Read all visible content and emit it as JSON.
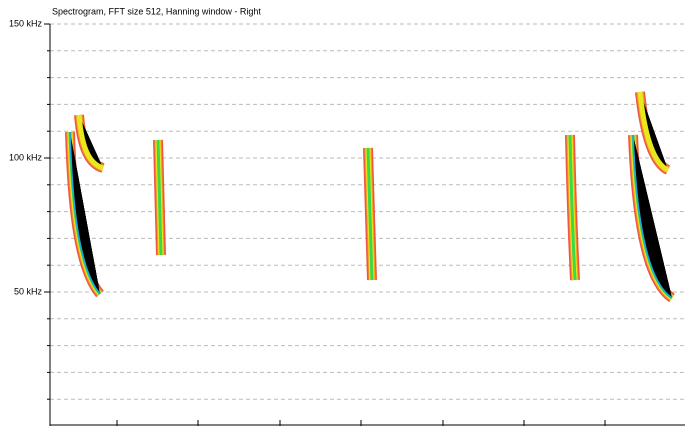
{
  "chart_data": {
    "type": "spectrogram",
    "title": "Spectrogram, FFT size 512, Hanning window - Right",
    "ylim": [
      0,
      150
    ],
    "yticks": [
      {
        "value": 50,
        "label": "50 kHz"
      },
      {
        "value": 100,
        "label": "100 kHz"
      },
      {
        "value": 150,
        "label": "150 kHz"
      }
    ],
    "minor_yticks": [
      10,
      20,
      30,
      40,
      60,
      70,
      80,
      90,
      110,
      120,
      130,
      140
    ],
    "grid": true
  }
}
